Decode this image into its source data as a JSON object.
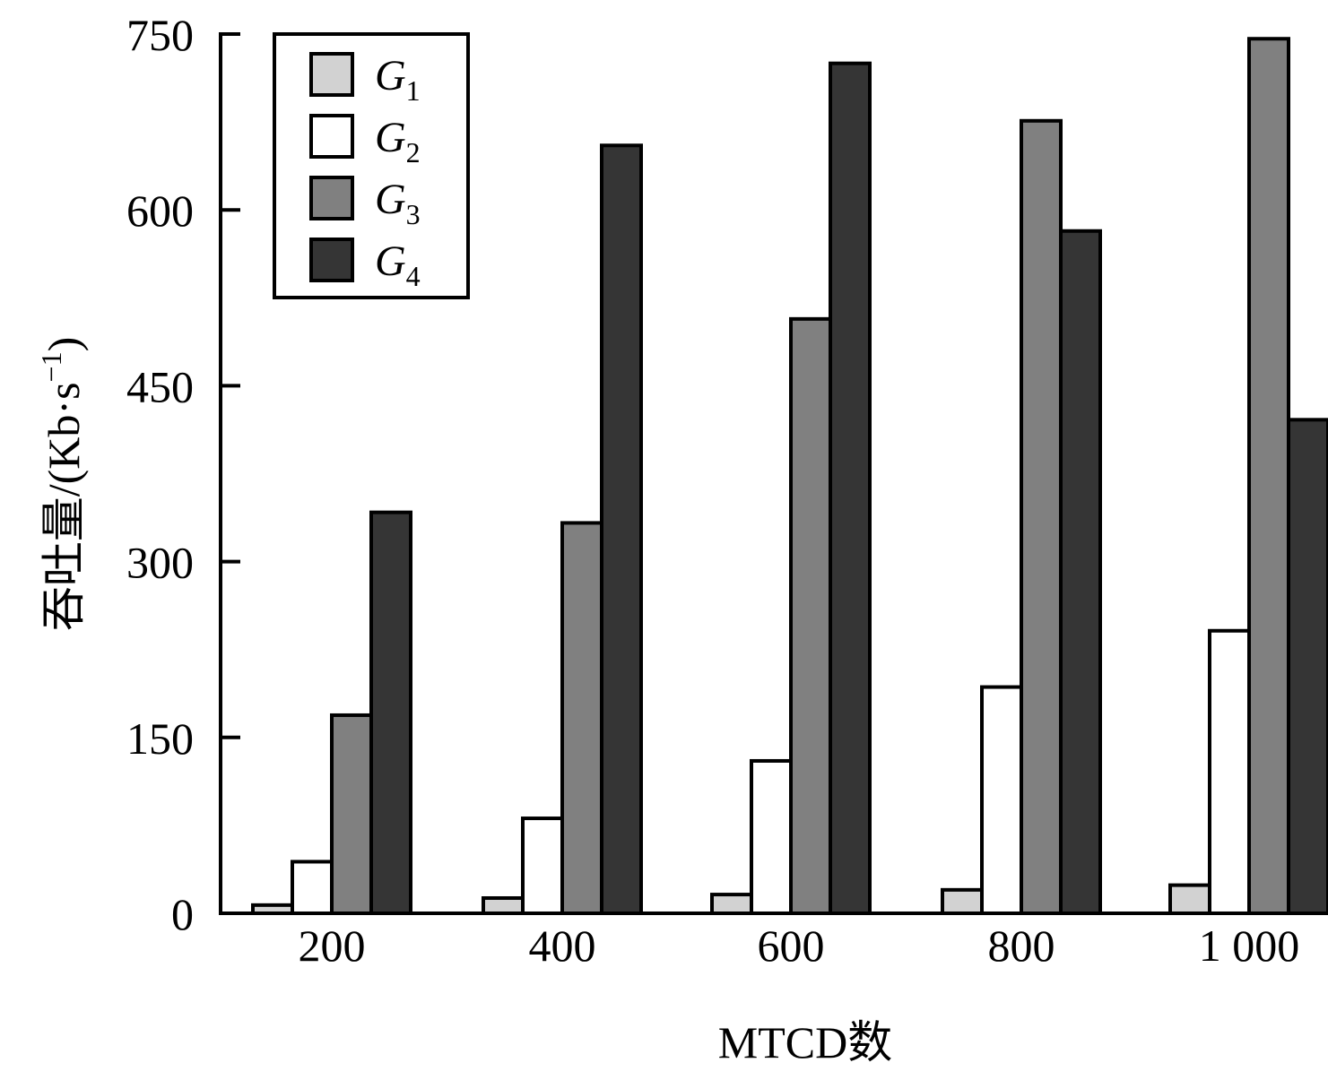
{
  "chart_data": {
    "type": "bar",
    "categories": [
      "200",
      "400",
      "600",
      "800",
      "1 000"
    ],
    "series": [
      {
        "name": "G1",
        "base": "G",
        "sub": "1",
        "color": "#d2d2d2",
        "values": [
          7,
          13,
          16,
          20,
          24
        ]
      },
      {
        "name": "G2",
        "base": "G",
        "sub": "2",
        "color": "#ffffff",
        "values": [
          44,
          81,
          130,
          193,
          241
        ]
      },
      {
        "name": "G3",
        "base": "G",
        "sub": "3",
        "color": "#808080",
        "values": [
          169,
          333,
          507,
          676,
          746
        ]
      },
      {
        "name": "G4",
        "base": "G",
        "sub": "4",
        "color": "#353535",
        "values": [
          342,
          655,
          725,
          582,
          421
        ]
      }
    ],
    "ylim": [
      0,
      750
    ],
    "yticks": [
      "0",
      "150",
      "300",
      "450",
      "600",
      "750"
    ],
    "ytick_values": [
      0,
      150,
      300,
      450,
      600,
      750
    ],
    "xlabel": "MTCD数",
    "ylabel": "吞吐量/(Kb·s",
    "ylabel_sup": "−1",
    "ylabel_end": ")",
    "grid": false,
    "legend_position": "top-left"
  }
}
